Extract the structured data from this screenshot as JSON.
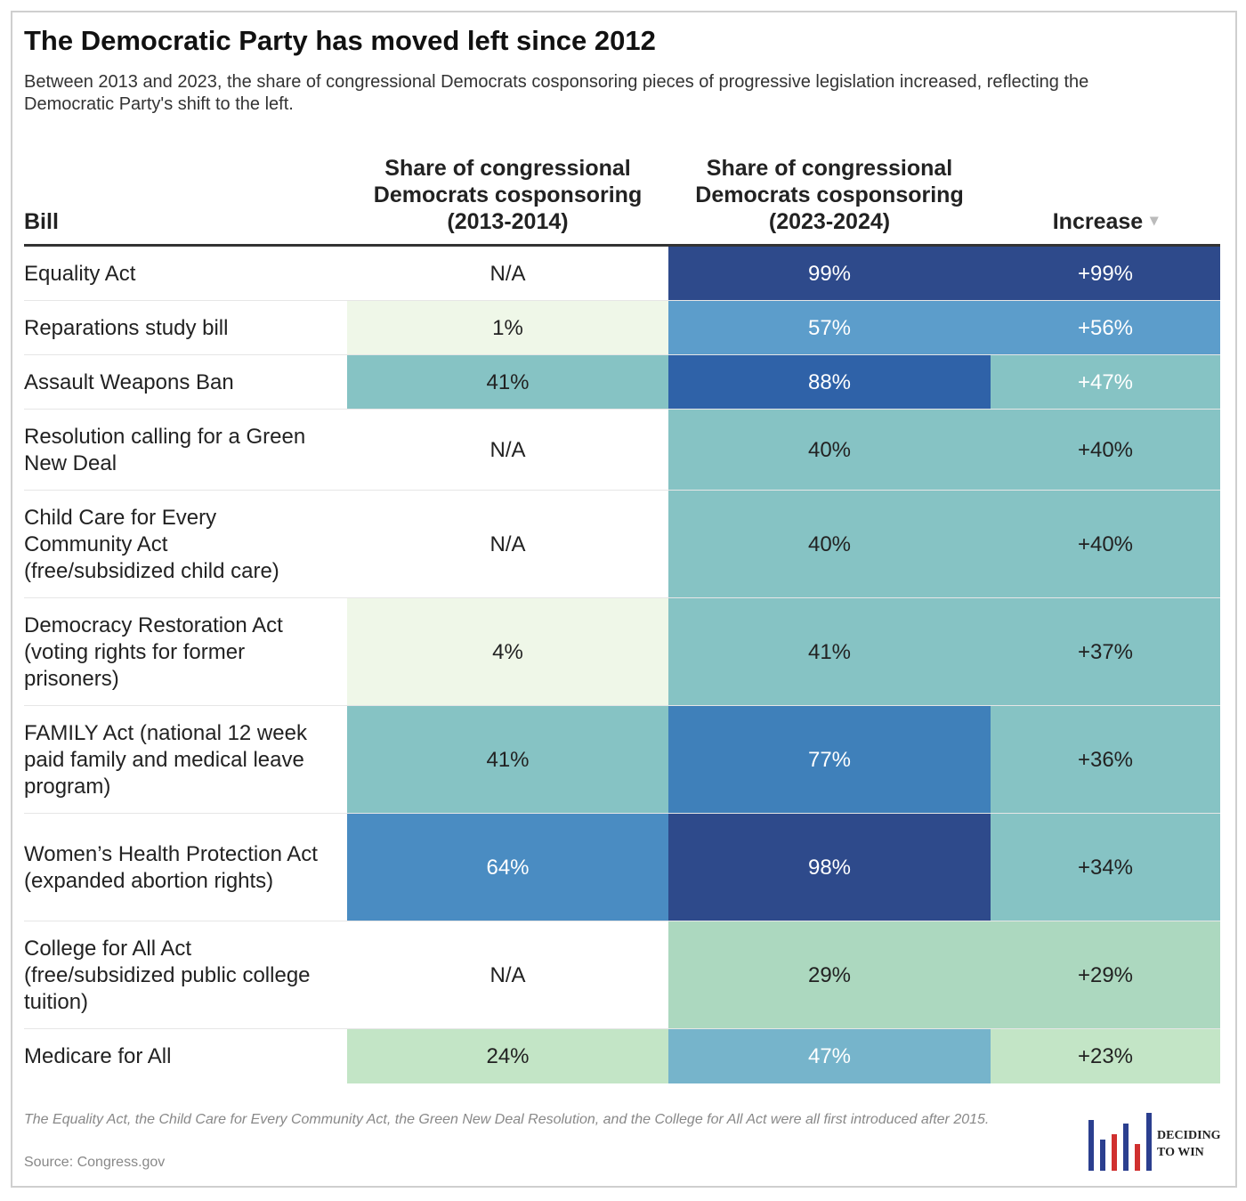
{
  "header": {
    "title": "The Democratic Party has moved left since 2012",
    "subtitle": "Between 2013 and 2023, the share of congressional Democrats cosponsoring pieces of progressive legislation increased, reflecting the Democratic Party's shift to the left."
  },
  "table": {
    "columns": [
      "Bill",
      "Share of congressional Democrats cosponsoring (2013-2014)",
      "Share of congressional Democrats cosponsoring (2023-2024)",
      "Increase"
    ],
    "rows": [
      [
        "Equality Act",
        "N/A",
        "99%",
        "+99%"
      ],
      [
        "Reparations study bill",
        "1%",
        "57%",
        "+56%"
      ],
      [
        "Assault Weapons Ban",
        "41%",
        "88%",
        "+47%"
      ],
      [
        "Resolution calling for a Green New Deal",
        "N/A",
        "40%",
        "+40%"
      ],
      [
        "Child Care for Every Community Act (free/subsidized child care)",
        "N/A",
        "40%",
        "+40%"
      ],
      [
        "Democracy Restoration Act (voting rights for former prisoners)",
        "4%",
        "41%",
        "+37%"
      ],
      [
        "FAMILY Act (national 12 week paid family and medical leave program)",
        "41%",
        "77%",
        "+36%"
      ],
      [
        "Women’s Health Protection Act (expanded abortion rights)",
        "64%",
        "98%",
        "+34%"
      ],
      [
        "College for All Act (free/subsidized public college tuition)",
        "N/A",
        "29%",
        "+29%"
      ],
      [
        "Medicare for All",
        "24%",
        "47%",
        "+23%"
      ]
    ],
    "fills": [
      [
        "#ffffff",
        "#ffffff",
        "#2e4a8b",
        "#2e4a8b"
      ],
      [
        "#ffffff",
        "#eff7e8",
        "#5c9dcb",
        "#5c9dcb"
      ],
      [
        "#ffffff",
        "#86c3c4",
        "#2f62a8",
        "#86c3c4"
      ],
      [
        "#ffffff",
        "#ffffff",
        "#86c3c4",
        "#86c3c4"
      ],
      [
        "#ffffff",
        "#ffffff",
        "#86c3c4",
        "#86c3c4"
      ],
      [
        "#ffffff",
        "#eff7e8",
        "#86c3c4",
        "#86c3c4"
      ],
      [
        "#ffffff",
        "#86c3c4",
        "#3f80ba",
        "#86c3c4"
      ],
      [
        "#ffffff",
        "#4a8cc2",
        "#2e4a8b",
        "#86c3c4"
      ],
      [
        "#ffffff",
        "#ffffff",
        "#acd8bf",
        "#acd8bf"
      ],
      [
        "#ffffff",
        "#c3e5c6",
        "#76b4cb",
        "#c3e5c6"
      ]
    ],
    "text_colors": [
      [
        "#222222",
        "#222222",
        "#ffffff",
        "#ffffff"
      ],
      [
        "#222222",
        "#222222",
        "#ffffff",
        "#ffffff"
      ],
      [
        "#222222",
        "#222222",
        "#ffffff",
        "#ffffff"
      ],
      [
        "#222222",
        "#222222",
        "#222222",
        "#222222"
      ],
      [
        "#222222",
        "#222222",
        "#222222",
        "#222222"
      ],
      [
        "#222222",
        "#222222",
        "#222222",
        "#222222"
      ],
      [
        "#222222",
        "#222222",
        "#ffffff",
        "#222222"
      ],
      [
        "#222222",
        "#ffffff",
        "#ffffff",
        "#222222"
      ],
      [
        "#222222",
        "#222222",
        "#222222",
        "#222222"
      ],
      [
        "#222222",
        "#222222",
        "#ffffff",
        "#222222"
      ]
    ]
  },
  "footer": {
    "note": "The Equality Act, the Child Care for Every Community Act, the Green New Deal Resolution, and the College for All Act were all first introduced after 2015.",
    "source": "Source: Congress.gov",
    "logo": "DECIDING TO WIN"
  }
}
